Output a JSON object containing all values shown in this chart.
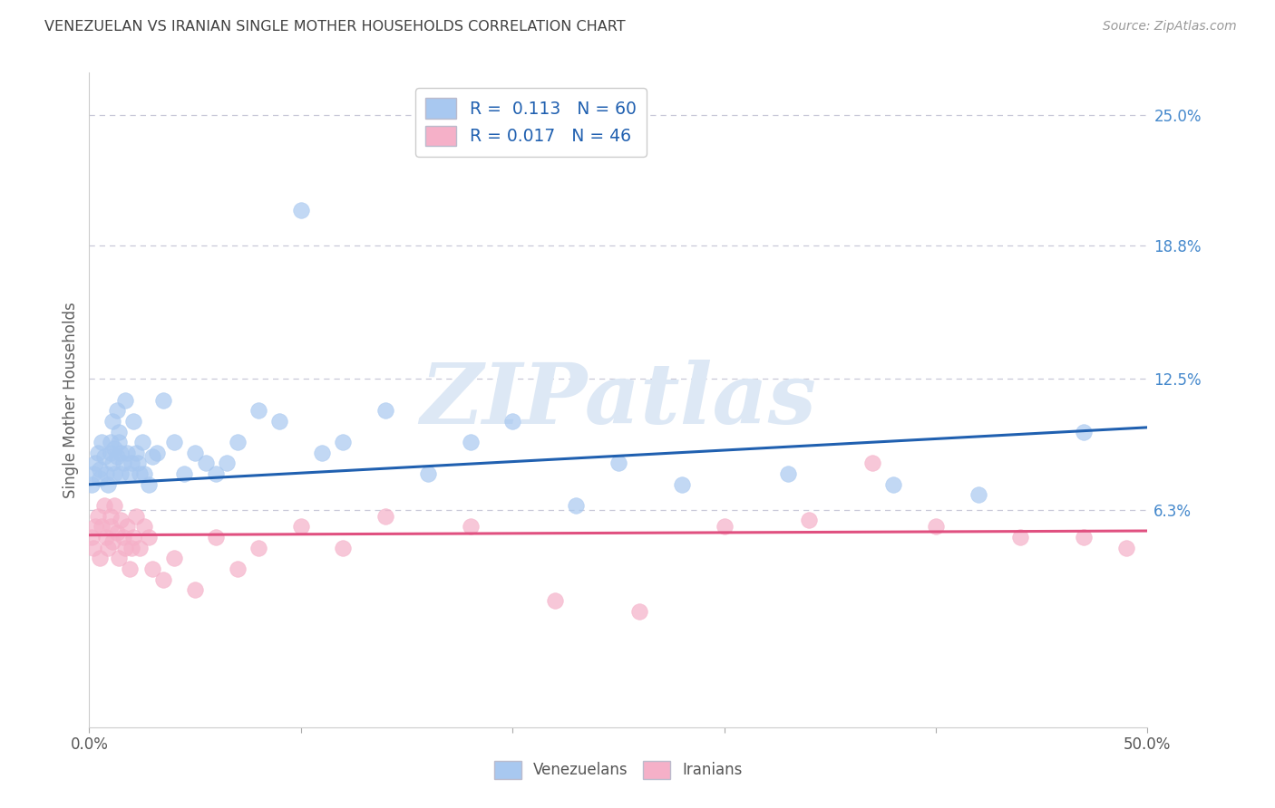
{
  "title": "VENEZUELAN VS IRANIAN SINGLE MOTHER HOUSEHOLDS CORRELATION CHART",
  "source": "Source: ZipAtlas.com",
  "ylabel": "Single Mother Households",
  "xlim": [
    0.0,
    50.0
  ],
  "ylim": [
    -4.0,
    27.0
  ],
  "ytick_labels_right": [
    "6.3%",
    "12.5%",
    "18.8%",
    "25.0%"
  ],
  "ytick_values_right": [
    6.3,
    12.5,
    18.8,
    25.0
  ],
  "venezuelan_color": "#A8C8F0",
  "iranian_color": "#F5B0C8",
  "venezuelan_line_color": "#2060B0",
  "iranian_line_color": "#E05080",
  "venezuelan_R": 0.113,
  "venezuelan_N": 60,
  "iranian_R": 0.017,
  "iranian_N": 46,
  "background_color": "#FFFFFF",
  "grid_color": "#C8C8D8",
  "title_color": "#404040",
  "axis_label_color": "#606060",
  "right_tick_color": "#4488CC",
  "watermark": "ZIPatlas",
  "watermark_color": "#DDE8F5",
  "venezuelan_x": [
    0.1,
    0.2,
    0.3,
    0.4,
    0.5,
    0.5,
    0.6,
    0.7,
    0.8,
    0.9,
    1.0,
    1.0,
    1.1,
    1.1,
    1.2,
    1.2,
    1.3,
    1.3,
    1.4,
    1.4,
    1.5,
    1.5,
    1.6,
    1.7,
    1.8,
    1.9,
    2.0,
    2.1,
    2.2,
    2.3,
    2.4,
    2.5,
    2.6,
    2.8,
    3.0,
    3.2,
    3.5,
    4.0,
    4.5,
    5.0,
    5.5,
    6.0,
    6.5,
    7.0,
    8.0,
    9.0,
    10.0,
    11.0,
    12.0,
    14.0,
    16.0,
    18.0,
    20.0,
    23.0,
    25.0,
    28.0,
    33.0,
    38.0,
    42.0,
    47.0
  ],
  "venezuelan_y": [
    7.5,
    8.0,
    8.5,
    9.0,
    7.8,
    8.2,
    9.5,
    8.8,
    8.0,
    7.5,
    9.0,
    9.5,
    10.5,
    8.5,
    9.2,
    8.0,
    11.0,
    8.8,
    9.5,
    10.0,
    8.0,
    9.0,
    8.5,
    11.5,
    9.0,
    8.0,
    8.5,
    10.5,
    9.0,
    8.5,
    8.0,
    9.5,
    8.0,
    7.5,
    8.8,
    9.0,
    11.5,
    9.5,
    8.0,
    9.0,
    8.5,
    8.0,
    8.5,
    9.5,
    11.0,
    10.5,
    20.5,
    9.0,
    9.5,
    11.0,
    8.0,
    9.5,
    10.5,
    6.5,
    8.5,
    7.5,
    8.0,
    7.5,
    7.0,
    10.0
  ],
  "iranian_x": [
    0.1,
    0.2,
    0.3,
    0.4,
    0.5,
    0.6,
    0.7,
    0.8,
    0.9,
    1.0,
    1.0,
    1.1,
    1.2,
    1.3,
    1.4,
    1.5,
    1.6,
    1.7,
    1.8,
    1.9,
    2.0,
    2.1,
    2.2,
    2.4,
    2.6,
    2.8,
    3.0,
    3.5,
    4.0,
    5.0,
    6.0,
    7.0,
    8.0,
    10.0,
    12.0,
    14.0,
    18.0,
    22.0,
    26.0,
    30.0,
    34.0,
    37.0,
    40.0,
    44.0,
    47.0,
    49.0
  ],
  "iranian_y": [
    5.0,
    4.5,
    5.5,
    6.0,
    4.0,
    5.5,
    6.5,
    5.0,
    4.5,
    5.5,
    6.0,
    4.8,
    6.5,
    5.2,
    4.0,
    5.8,
    5.0,
    4.5,
    5.5,
    3.5,
    4.5,
    5.0,
    6.0,
    4.5,
    5.5,
    5.0,
    3.5,
    3.0,
    4.0,
    2.5,
    5.0,
    3.5,
    4.5,
    5.5,
    4.5,
    6.0,
    5.5,
    2.0,
    1.5,
    5.5,
    5.8,
    8.5,
    5.5,
    5.0,
    5.0,
    4.5
  ]
}
